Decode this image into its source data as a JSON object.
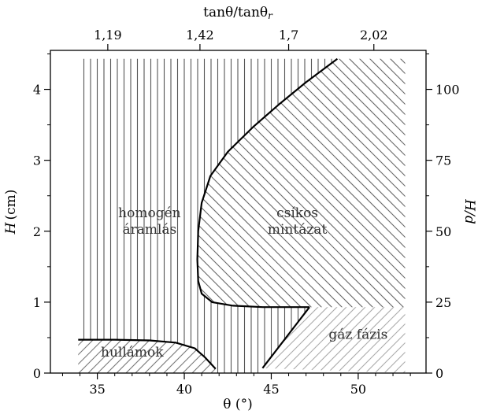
{
  "chart_data": {
    "type": "phase-diagram",
    "bottom_axis": {
      "label": "θ (°)",
      "range": [
        32.3,
        53.9
      ],
      "ticks": [
        35,
        40,
        45,
        50
      ],
      "tick_labels": [
        "35",
        "40",
        "45",
        "50"
      ]
    },
    "top_axis": {
      "label": "tanθ/tanθ",
      "label_subscript": "r",
      "tick_positions_theta": [
        35.6,
        40.9,
        46.0,
        50.9
      ],
      "tick_labels": [
        "1,19",
        "1,42",
        "1,7",
        "2,02"
      ]
    },
    "left_axis": {
      "label_main": "H",
      "label_unit": "(cm)",
      "range": [
        0,
        4.55
      ],
      "ticks": [
        0,
        1,
        2,
        3,
        4
      ],
      "tick_labels": [
        "0",
        "1",
        "2",
        "3",
        "4"
      ]
    },
    "right_axis": {
      "label": "H/d",
      "range": [
        0,
        113.75
      ],
      "ticks": [
        0,
        25,
        50,
        75,
        100
      ],
      "tick_labels": [
        "0",
        "25",
        "50",
        "75",
        "100"
      ]
    },
    "regions": [
      {
        "label_lines": [
          "homogén",
          "áramlás"
        ],
        "label_at": [
          38.0,
          2.15
        ]
      },
      {
        "label_lines": [
          "csíkos",
          "mintázat"
        ],
        "label_at": [
          46.5,
          2.15
        ]
      },
      {
        "label_lines": [
          "hullámok"
        ],
        "label_at": [
          37.0,
          0.3
        ]
      },
      {
        "label_lines": [
          "gáz fázis"
        ],
        "label_at": [
          50.0,
          0.55
        ]
      }
    ],
    "boundaries": [
      {
        "name": "homogeneous-boundary",
        "points": [
          [
            48.8,
            4.43
          ],
          [
            47.0,
            4.1
          ],
          [
            45.5,
            3.8
          ],
          [
            44.0,
            3.48
          ],
          [
            42.5,
            3.12
          ],
          [
            41.5,
            2.78
          ],
          [
            41.0,
            2.4
          ],
          [
            40.8,
            2.0
          ],
          [
            40.75,
            1.6
          ],
          [
            40.8,
            1.3
          ],
          [
            41.0,
            1.12
          ],
          [
            41.6,
            1.0
          ],
          [
            42.8,
            0.95
          ],
          [
            44.5,
            0.93
          ],
          [
            47.2,
            0.93
          ]
        ]
      },
      {
        "name": "wave-boundary",
        "points": [
          [
            33.9,
            0.47
          ],
          [
            36.0,
            0.47
          ],
          [
            38.0,
            0.46
          ],
          [
            39.5,
            0.43
          ],
          [
            40.6,
            0.35
          ],
          [
            41.2,
            0.22
          ],
          [
            41.8,
            0.06
          ]
        ]
      },
      {
        "name": "gas-boundary",
        "points": [
          [
            47.2,
            0.93
          ],
          [
            44.5,
            0.07
          ]
        ]
      }
    ],
    "grid": false
  }
}
